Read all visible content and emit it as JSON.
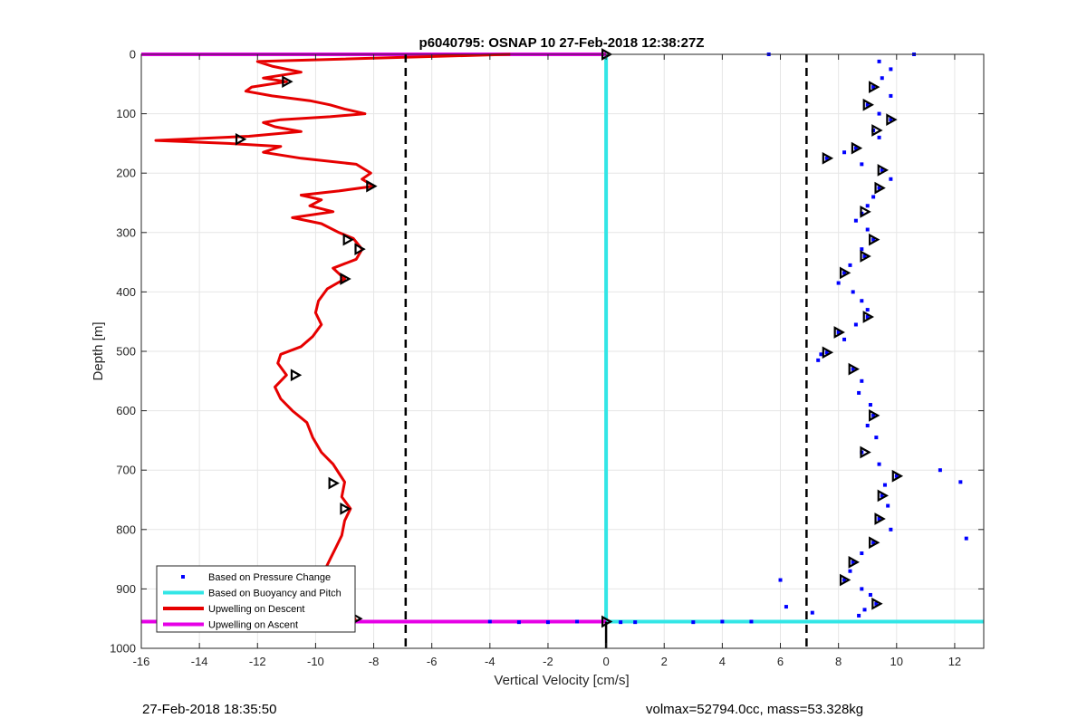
{
  "chart_data": {
    "type": "line",
    "title": "p6040795: OSNAP 10 27-Feb-2018 12:38:27Z",
    "xlabel": "Vertical Velocity [cm/s]",
    "ylabel": "Depth [m]",
    "xlim": [
      -16,
      13
    ],
    "ylim": [
      0,
      1000
    ],
    "y_reversed": true,
    "x_ticks": [
      -16,
      -14,
      -12,
      -10,
      -8,
      -6,
      -4,
      -2,
      0,
      2,
      4,
      6,
      8,
      10,
      12
    ],
    "y_ticks": [
      0,
      100,
      200,
      300,
      400,
      500,
      600,
      700,
      800,
      900,
      1000
    ],
    "grid": true,
    "legend_position": "bottom-left",
    "legend": [
      {
        "label": "Based on Pressure Change",
        "style": "dot",
        "color": "#0000ff"
      },
      {
        "label": "Based on Buoyancy and Pitch",
        "style": "line",
        "color": "#33e6e6"
      },
      {
        "label": "Upwelling on Descent",
        "style": "line",
        "color": "#e60000"
      },
      {
        "label": "Upwelling on Ascent",
        "style": "line",
        "color": "#e600e6"
      }
    ],
    "reference_lines": [
      {
        "x": -6.9,
        "style": "dashed",
        "color": "#000000"
      },
      {
        "x": 6.9,
        "style": "dashed",
        "color": "#000000"
      }
    ],
    "series": [
      {
        "kind": "line",
        "color": "#33e6e6",
        "points": [
          [
            0,
            0
          ],
          [
            0,
            955
          ],
          [
            13,
            955
          ]
        ]
      },
      {
        "kind": "line",
        "color": "#e600e6",
        "points": [
          [
            -16,
            0
          ],
          [
            0,
            0
          ]
        ]
      },
      {
        "kind": "line",
        "color": "#e600e6",
        "points": [
          [
            -16,
            955
          ],
          [
            0,
            955
          ]
        ]
      },
      {
        "kind": "line",
        "color": "#e60000",
        "points": [
          [
            -3.3,
            0
          ],
          [
            -12,
            12
          ],
          [
            -11.5,
            20
          ],
          [
            -10.5,
            30
          ],
          [
            -11.8,
            40
          ],
          [
            -11.0,
            46
          ],
          [
            -12.2,
            55
          ],
          [
            -12.4,
            62
          ],
          [
            -11.5,
            70
          ],
          [
            -10.2,
            78
          ],
          [
            -9.5,
            85
          ],
          [
            -9,
            92
          ],
          [
            -8.3,
            100
          ],
          [
            -9.5,
            105
          ],
          [
            -11.2,
            110
          ],
          [
            -11.8,
            115
          ],
          [
            -11.4,
            122
          ],
          [
            -10.5,
            130
          ],
          [
            -12.3,
            138
          ],
          [
            -15.5,
            145
          ],
          [
            -13,
            150
          ],
          [
            -11.2,
            155
          ],
          [
            -11.8,
            165
          ],
          [
            -10.5,
            175
          ],
          [
            -8.6,
            185
          ],
          [
            -8.1,
            200
          ],
          [
            -8.4,
            210
          ],
          [
            -8.0,
            222
          ],
          [
            -9.2,
            230
          ],
          [
            -10.5,
            237
          ],
          [
            -9.8,
            245
          ],
          [
            -10.2,
            255
          ],
          [
            -9.4,
            265
          ],
          [
            -10.8,
            275
          ],
          [
            -9.8,
            285
          ],
          [
            -9.2,
            300
          ],
          [
            -8.7,
            310
          ],
          [
            -8.4,
            328
          ],
          [
            -8.6,
            345
          ],
          [
            -9.4,
            360
          ],
          [
            -9.0,
            378
          ],
          [
            -9.6,
            395
          ],
          [
            -9.9,
            415
          ],
          [
            -10.0,
            435
          ],
          [
            -9.8,
            455
          ],
          [
            -10.1,
            475
          ],
          [
            -10.5,
            492
          ],
          [
            -11.2,
            505
          ],
          [
            -11.3,
            520
          ],
          [
            -11.0,
            540
          ],
          [
            -11.4,
            560
          ],
          [
            -11.2,
            580
          ],
          [
            -10.8,
            600
          ],
          [
            -10.3,
            620
          ],
          [
            -10.1,
            645
          ],
          [
            -9.8,
            670
          ],
          [
            -9.4,
            690
          ],
          [
            -9.2,
            705
          ],
          [
            -9.0,
            720
          ],
          [
            -9.1,
            745
          ],
          [
            -8.8,
            765
          ],
          [
            -9.0,
            785
          ],
          [
            -9.1,
            810
          ],
          [
            -9.3,
            830
          ],
          [
            -9.5,
            850
          ],
          [
            -9.7,
            870
          ],
          [
            -10.2,
            888
          ],
          [
            -9.8,
            905
          ],
          [
            -9.6,
            922
          ],
          [
            -9.0,
            935
          ],
          [
            -8.7,
            945
          ],
          [
            -8.6,
            955
          ]
        ]
      },
      {
        "kind": "scatter",
        "color": "#0000ff",
        "points": [
          [
            10.6,
            0
          ],
          [
            9.4,
            12
          ],
          [
            9.8,
            25
          ],
          [
            9.5,
            40
          ],
          [
            9.2,
            55
          ],
          [
            9.8,
            70
          ],
          [
            9.0,
            85
          ],
          [
            9.4,
            100
          ],
          [
            9.8,
            110
          ],
          [
            9.2,
            128
          ],
          [
            9.4,
            140
          ],
          [
            8.6,
            158
          ],
          [
            8.2,
            165
          ],
          [
            7.6,
            175
          ],
          [
            8.8,
            185
          ],
          [
            9.5,
            195
          ],
          [
            9.8,
            210
          ],
          [
            9.4,
            225
          ],
          [
            9.2,
            240
          ],
          [
            9.0,
            255
          ],
          [
            8.8,
            268
          ],
          [
            8.6,
            280
          ],
          [
            9.0,
            295
          ],
          [
            9.2,
            312
          ],
          [
            8.8,
            328
          ],
          [
            8.9,
            340
          ],
          [
            8.4,
            355
          ],
          [
            8.2,
            368
          ],
          [
            8.0,
            385
          ],
          [
            8.5,
            400
          ],
          [
            8.8,
            415
          ],
          [
            9.0,
            430
          ],
          [
            9.0,
            442
          ],
          [
            8.6,
            455
          ],
          [
            8.0,
            468
          ],
          [
            8.2,
            480
          ],
          [
            7.6,
            502
          ],
          [
            7.3,
            515
          ],
          [
            8.5,
            530
          ],
          [
            8.8,
            550
          ],
          [
            8.7,
            570
          ],
          [
            9.1,
            590
          ],
          [
            9.2,
            608
          ],
          [
            9.0,
            625
          ],
          [
            9.3,
            645
          ],
          [
            8.8,
            670
          ],
          [
            9.4,
            690
          ],
          [
            10.0,
            710
          ],
          [
            9.6,
            725
          ],
          [
            9.5,
            743
          ],
          [
            9.7,
            760
          ],
          [
            9.4,
            782
          ],
          [
            9.8,
            800
          ],
          [
            9.2,
            822
          ],
          [
            8.8,
            840
          ],
          [
            8.5,
            855
          ],
          [
            8.4,
            870
          ],
          [
            8.2,
            885
          ],
          [
            8.8,
            900
          ],
          [
            9.1,
            910
          ],
          [
            9.3,
            925
          ],
          [
            8.9,
            935
          ],
          [
            8.7,
            945
          ],
          [
            12.2,
            720
          ],
          [
            11.5,
            700
          ],
          [
            12.4,
            815
          ],
          [
            6.0,
            885
          ],
          [
            6.2,
            930
          ],
          [
            5.6,
            0
          ],
          [
            3,
            956
          ],
          [
            4,
            955
          ],
          [
            5,
            955
          ],
          [
            -3,
            956
          ],
          [
            -2,
            956
          ],
          [
            -1,
            955
          ],
          [
            0.5,
            956
          ],
          [
            1,
            956
          ],
          [
            -4,
            955
          ],
          [
            7.4,
            505
          ],
          [
            7.1,
            940
          ]
        ]
      }
    ],
    "markers": [
      {
        "series_color": "#e60000",
        "points": [
          [
            -11.0,
            46
          ],
          [
            -12.6,
            143
          ],
          [
            -8.1,
            222
          ],
          [
            -8.9,
            312
          ],
          [
            -8.5,
            328
          ],
          [
            -9.0,
            378
          ],
          [
            -10.7,
            540
          ],
          [
            -9.4,
            722
          ],
          [
            -9.0,
            765
          ],
          [
            -10.2,
            888
          ],
          [
            -9.5,
            920
          ],
          [
            -8.6,
            950
          ]
        ]
      },
      {
        "series_color": "#0000ff",
        "points": [
          [
            9.2,
            55
          ],
          [
            9.0,
            85
          ],
          [
            9.8,
            110
          ],
          [
            9.3,
            128
          ],
          [
            8.6,
            158
          ],
          [
            7.6,
            175
          ],
          [
            9.5,
            195
          ],
          [
            9.4,
            225
          ],
          [
            8.9,
            265
          ],
          [
            9.2,
            312
          ],
          [
            8.9,
            340
          ],
          [
            8.2,
            368
          ],
          [
            9.0,
            442
          ],
          [
            8.0,
            468
          ],
          [
            7.6,
            502
          ],
          [
            8.5,
            530
          ],
          [
            9.2,
            608
          ],
          [
            8.9,
            670
          ],
          [
            10.0,
            710
          ],
          [
            9.5,
            743
          ],
          [
            9.4,
            782
          ],
          [
            9.2,
            822
          ],
          [
            8.5,
            855
          ],
          [
            8.2,
            885
          ],
          [
            9.3,
            925
          ]
        ]
      },
      {
        "series_color": "#33e6e6",
        "points": [
          [
            0,
            0
          ],
          [
            0,
            955
          ]
        ]
      }
    ]
  },
  "footer": {
    "left_text": "27-Feb-2018 18:35:50",
    "right_text": "volmax=52794.0cc, mass=53.328kg"
  },
  "colors": {
    "axis": "#262626",
    "grid": "#e6e6e6",
    "background": "#ffffff"
  }
}
